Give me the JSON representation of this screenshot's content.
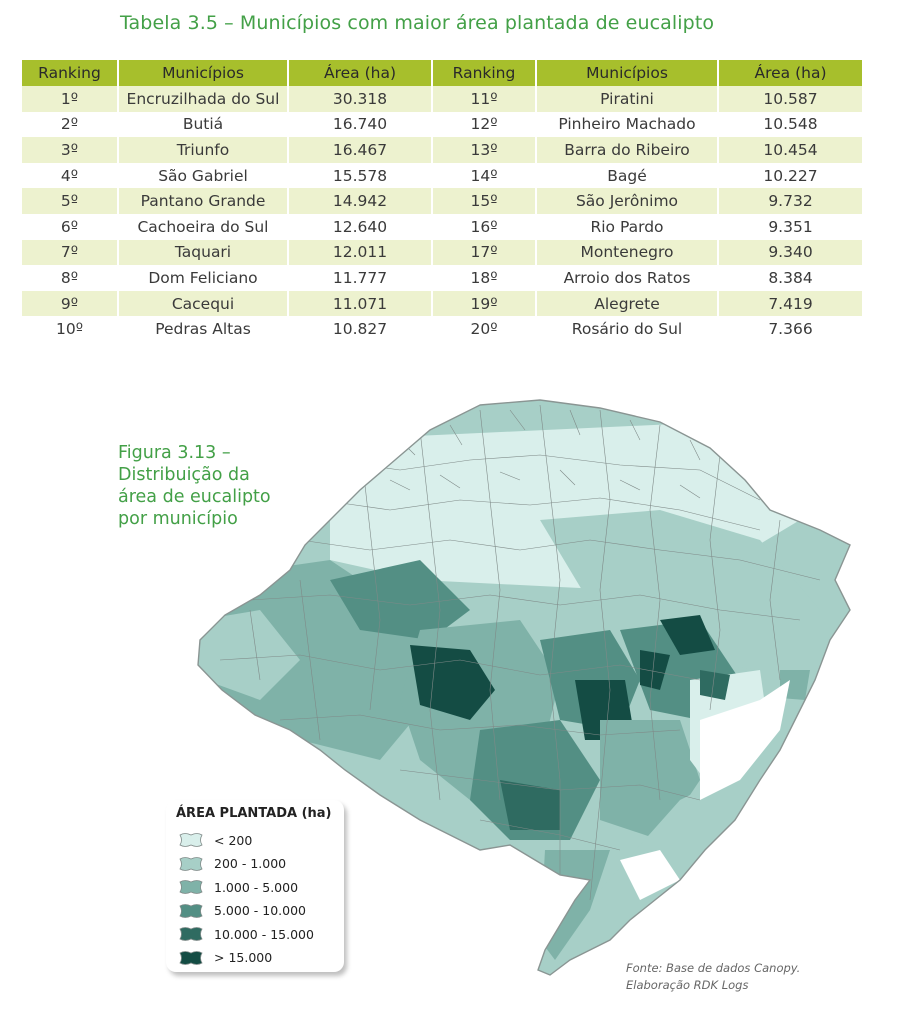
{
  "table": {
    "title": "Tabela 3.5 – Municípios com maior área plantada de eucalipto",
    "headers": [
      "Ranking",
      "Municípios",
      "Área (ha)",
      "Ranking",
      "Municípios",
      "Área (ha)"
    ],
    "rows": [
      [
        "1º",
        "Encruzilhada do Sul",
        "30.318",
        "11º",
        "Piratini",
        "10.587"
      ],
      [
        "2º",
        "Butiá",
        "16.740",
        "12º",
        "Pinheiro Machado",
        "10.548"
      ],
      [
        "3º",
        "Triunfo",
        "16.467",
        "13º",
        "Barra do Ribeiro",
        "10.454"
      ],
      [
        "4º",
        "São Gabriel",
        "15.578",
        "14º",
        "Bagé",
        "10.227"
      ],
      [
        "5º",
        "Pantano Grande",
        "14.942",
        "15º",
        "São Jerônimo",
        "9.732"
      ],
      [
        "6º",
        "Cachoeira do Sul",
        "12.640",
        "16º",
        "Rio Pardo",
        "9.351"
      ],
      [
        "7º",
        "Taquari",
        "12.011",
        "17º",
        "Montenegro",
        "9.340"
      ],
      [
        "8º",
        "Dom Feliciano",
        "11.777",
        "18º",
        "Arroio dos Ratos",
        "8.384"
      ],
      [
        "9º",
        "Cacequi",
        "11.071",
        "19º",
        "Alegrete",
        "7.419"
      ],
      [
        "10º",
        "Pedras Altas",
        "10.827",
        "20º",
        "Rosário do Sul",
        "7.366"
      ]
    ]
  },
  "figure": {
    "caption_lines": [
      "Figura 3.13 –",
      "Distribuição da",
      "área de eucalipto",
      "por município"
    ]
  },
  "legend": {
    "title": "ÁREA PLANTADA (ha)",
    "items": [
      {
        "label": "< 200",
        "color": "#d9efeb"
      },
      {
        "label": "200 - 1.000",
        "color": "#a7cfc7"
      },
      {
        "label": "1.000 - 5.000",
        "color": "#7fb2a8"
      },
      {
        "label": "5.000 - 10.000",
        "color": "#538f84"
      },
      {
        "label": "10.000 - 15.000",
        "color": "#2f6b61"
      },
      {
        "label": "> 15.000",
        "color": "#144c44"
      }
    ]
  },
  "source": {
    "lines": [
      "Fonte: Base de dados Canopy.",
      "Elaboração RDK Logs"
    ]
  },
  "colors": {
    "title_green": "#43a047",
    "header_olive": "#a7bf2c",
    "row_stripe": "#edf2cf"
  }
}
